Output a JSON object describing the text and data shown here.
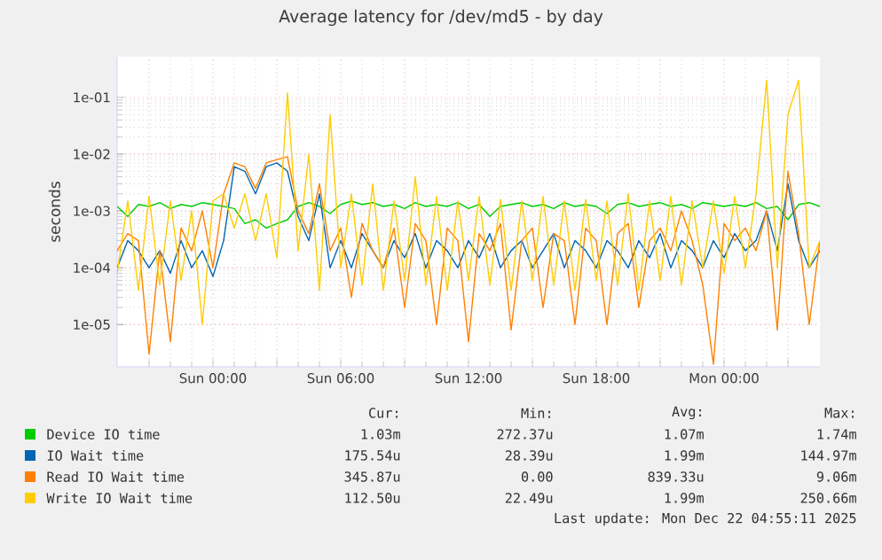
{
  "chart_data": {
    "type": "line",
    "title": "Average latency for /dev/md5 - by day",
    "ylabel": "seconds",
    "log": "y",
    "grid": true,
    "legend": "bottom",
    "xlim": [
      "2025-12-20T19:30",
      "2025-12-22T04:30"
    ],
    "ylim": [
      1.8e-06,
      0.52
    ],
    "xticks": [
      {
        "value": "2025-12-20T21:00",
        "label": null
      },
      {
        "value": "2025-12-21T00:00",
        "label": "Sun 00:00"
      },
      {
        "value": "2025-12-21T03:00",
        "label": null
      },
      {
        "value": "2025-12-21T06:00",
        "label": "Sun 06:00"
      },
      {
        "value": "2025-12-21T09:00",
        "label": null
      },
      {
        "value": "2025-12-21T12:00",
        "label": "Sun 12:00"
      },
      {
        "value": "2025-12-21T15:00",
        "label": null
      },
      {
        "value": "2025-12-21T18:00",
        "label": "Sun 18:00"
      },
      {
        "value": "2025-12-21T21:00",
        "label": null
      },
      {
        "value": "2025-12-22T00:00",
        "label": "Mon 00:00"
      },
      {
        "value": "2025-12-22T03:00",
        "label": null
      }
    ],
    "yticks": [
      {
        "value": 1e-05,
        "label": "1e-05"
      },
      {
        "value": 0.0001,
        "label": "1e-04"
      },
      {
        "value": 0.001,
        "label": "1e-03"
      },
      {
        "value": 0.01,
        "label": "1e-02"
      },
      {
        "value": 0.1,
        "label": "1e-01"
      }
    ],
    "x": [
      "2025-12-20T19:30",
      "2025-12-20T20:00",
      "2025-12-20T20:30",
      "2025-12-20T21:00",
      "2025-12-20T21:30",
      "2025-12-20T22:00",
      "2025-12-20T22:30",
      "2025-12-20T23:00",
      "2025-12-20T23:30",
      "2025-12-21T00:00",
      "2025-12-21T00:30",
      "2025-12-21T01:00",
      "2025-12-21T01:30",
      "2025-12-21T02:00",
      "2025-12-21T02:30",
      "2025-12-21T03:00",
      "2025-12-21T03:30",
      "2025-12-21T04:00",
      "2025-12-21T04:30",
      "2025-12-21T05:00",
      "2025-12-21T05:30",
      "2025-12-21T06:00",
      "2025-12-21T06:30",
      "2025-12-21T07:00",
      "2025-12-21T07:30",
      "2025-12-21T08:00",
      "2025-12-21T08:30",
      "2025-12-21T09:00",
      "2025-12-21T09:30",
      "2025-12-21T10:00",
      "2025-12-21T10:30",
      "2025-12-21T11:00",
      "2025-12-21T11:30",
      "2025-12-21T12:00",
      "2025-12-21T12:30",
      "2025-12-21T13:00",
      "2025-12-21T13:30",
      "2025-12-21T14:00",
      "2025-12-21T14:30",
      "2025-12-21T15:00",
      "2025-12-21T15:30",
      "2025-12-21T16:00",
      "2025-12-21T16:30",
      "2025-12-21T17:00",
      "2025-12-21T17:30",
      "2025-12-21T18:00",
      "2025-12-21T18:30",
      "2025-12-21T19:00",
      "2025-12-21T19:30",
      "2025-12-21T20:00",
      "2025-12-21T20:30",
      "2025-12-21T21:00",
      "2025-12-21T21:30",
      "2025-12-21T22:00",
      "2025-12-21T22:30",
      "2025-12-21T23:00",
      "2025-12-21T23:30",
      "2025-12-22T00:00",
      "2025-12-22T00:30",
      "2025-12-22T01:00",
      "2025-12-22T01:30",
      "2025-12-22T02:00",
      "2025-12-22T02:30",
      "2025-12-22T03:00",
      "2025-12-22T03:30",
      "2025-12-22T04:00",
      "2025-12-22T04:30"
    ],
    "series": [
      {
        "name": "Device IO time",
        "color": "#00cc00",
        "values": [
          0.0012,
          0.0008,
          0.0013,
          0.0012,
          0.0014,
          0.0011,
          0.0013,
          0.0012,
          0.0014,
          0.0013,
          0.0012,
          0.0011,
          0.0006,
          0.0007,
          0.0005,
          0.0006,
          0.0007,
          0.0012,
          0.0014,
          0.0012,
          0.0009,
          0.0013,
          0.0015,
          0.0013,
          0.0014,
          0.0012,
          0.0013,
          0.0011,
          0.0014,
          0.0012,
          0.0013,
          0.0012,
          0.0014,
          0.0011,
          0.0013,
          0.0008,
          0.0012,
          0.0013,
          0.0014,
          0.0012,
          0.0013,
          0.0011,
          0.0014,
          0.0012,
          0.0013,
          0.0012,
          0.0009,
          0.0013,
          0.0014,
          0.0012,
          0.0013,
          0.0014,
          0.0012,
          0.0013,
          0.0011,
          0.0014,
          0.0013,
          0.0012,
          0.0013,
          0.0012,
          0.0014,
          0.0011,
          0.0012,
          0.0007,
          0.0013,
          0.0014,
          0.0012
        ]
      },
      {
        "name": "IO Wait time",
        "color": "#0066b3",
        "values": [
          0.0001,
          0.0003,
          0.0002,
          0.0001,
          0.0002,
          8e-05,
          0.0003,
          0.0001,
          0.0002,
          7e-05,
          0.0003,
          0.006,
          0.005,
          0.002,
          0.006,
          0.007,
          0.005,
          0.0008,
          0.0003,
          0.002,
          0.0001,
          0.0003,
          0.0001,
          0.0004,
          0.0002,
          0.0001,
          0.0003,
          0.00015,
          0.0004,
          0.0001,
          0.0003,
          0.0002,
          0.0001,
          0.0003,
          0.00015,
          0.0004,
          0.0001,
          0.0002,
          0.0003,
          0.0001,
          0.0002,
          0.0004,
          0.0001,
          0.0003,
          0.0002,
          0.0001,
          0.0003,
          0.0002,
          0.0001,
          0.0003,
          0.00015,
          0.0004,
          0.0001,
          0.0003,
          0.0002,
          0.0001,
          0.0003,
          0.00015,
          0.0004,
          0.0002,
          0.0003,
          0.001,
          0.0002,
          0.003,
          0.0003,
          0.0001,
          0.0002
        ]
      },
      {
        "name": "Read IO Wait time",
        "color": "#ff8000",
        "values": [
          0.0002,
          0.0004,
          0.0003,
          3e-06,
          0.0002,
          5e-06,
          0.0005,
          0.0002,
          0.001,
          0.0001,
          0.002,
          0.007,
          0.006,
          0.0025,
          0.007,
          0.008,
          0.009,
          0.001,
          0.0004,
          0.003,
          0.0002,
          0.0005,
          3e-05,
          0.0006,
          0.0002,
          0.0001,
          0.0005,
          2e-05,
          0.0006,
          0.0003,
          1e-05,
          0.0005,
          0.0003,
          5e-06,
          0.0004,
          0.0002,
          0.0006,
          8e-06,
          0.0003,
          0.0005,
          2e-05,
          0.0004,
          0.0003,
          1e-05,
          0.0005,
          0.0003,
          1e-05,
          0.0004,
          0.0006,
          2e-05,
          0.0003,
          0.0005,
          0.0002,
          0.001,
          0.0003,
          5e-05,
          2e-06,
          0.0006,
          0.0003,
          0.0005,
          0.0002,
          0.001,
          8e-06,
          0.005,
          0.0004,
          1e-05,
          0.0003
        ]
      },
      {
        "name": "Write IO Wait time",
        "color": "#ffcc00",
        "values": [
          8e-05,
          0.0015,
          4e-05,
          0.0018,
          5e-05,
          0.0015,
          6e-05,
          0.001,
          1e-05,
          0.0015,
          0.002,
          0.0005,
          0.002,
          0.0003,
          0.002,
          0.00015,
          0.12,
          0.0002,
          0.01,
          4e-05,
          0.05,
          0.0001,
          0.002,
          5e-05,
          0.003,
          4e-05,
          0.0015,
          6e-05,
          0.004,
          5e-05,
          0.0018,
          4e-05,
          0.0015,
          6e-05,
          0.0018,
          5e-05,
          0.0016,
          4e-05,
          0.0015,
          6e-05,
          0.0018,
          5e-05,
          0.0015,
          4e-05,
          0.0016,
          6e-05,
          0.0015,
          5e-05,
          0.002,
          4e-05,
          0.0015,
          6e-05,
          0.0018,
          5e-05,
          0.0015,
          0.0001,
          0.0015,
          8e-05,
          0.0018,
          0.0001,
          0.002,
          0.2,
          0.0001,
          0.05,
          0.2,
          0.0001,
          0.0003
        ]
      }
    ],
    "annotations": [
      "Cur:",
      "Min:",
      "Avg:",
      "Max:",
      "1.03m",
      "272.37u",
      "1.07m",
      "1.74m",
      "175.54u",
      "28.39u",
      "1.99m",
      "144.97m",
      "345.87u",
      "0.00",
      "839.33u",
      "9.06m",
      "112.50u",
      "22.49u",
      "1.99m",
      "250.66m",
      "Last update: Mon Dec 22 04:55:11 2025"
    ]
  }
}
